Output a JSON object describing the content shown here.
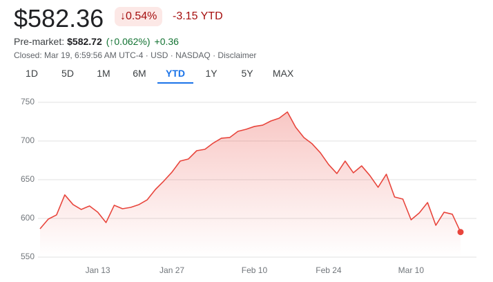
{
  "header": {
    "price": "$582.36",
    "change_pct": "↓0.54%",
    "ytd": "-3.15 YTD",
    "premarket_label": "Pre-market:",
    "premarket_price": "$582.72",
    "premarket_pct": "(↑0.062%)",
    "premarket_change": "+0.36",
    "status": "Closed: Mar 19, 6:59:56 AM UTC-4 · USD · NASDAQ · Disclaimer"
  },
  "tabs": {
    "items": [
      "1D",
      "5D",
      "1M",
      "6M",
      "YTD",
      "1Y",
      "5Y",
      "MAX"
    ],
    "active": "YTD"
  },
  "chart_data": {
    "type": "line",
    "categories": [
      null,
      null,
      null,
      null,
      null,
      null,
      null,
      "Jan 13",
      null,
      null,
      null,
      null,
      null,
      null,
      null,
      null,
      "Jan 27",
      null,
      null,
      null,
      null,
      null,
      null,
      null,
      null,
      null,
      "Feb 10",
      null,
      null,
      null,
      null,
      null,
      null,
      null,
      null,
      "Feb 24",
      null,
      null,
      null,
      null,
      null,
      null,
      null,
      null,
      null,
      "Mar 10",
      null,
      null,
      null,
      null,
      null,
      null
    ],
    "series": [
      {
        "color": "#e8453c",
        "values": [
          586.6,
          599.1,
          604.5,
          630.4,
          617.9,
          611.6,
          616.1,
          608.0,
          594.6,
          617.0,
          612.5,
          614.3,
          617.9,
          624.1,
          637.5,
          648.2,
          659.8,
          674.1,
          676.8,
          687.5,
          689.3,
          697.3,
          703.6,
          704.5,
          712.5,
          715.2,
          718.8,
          720.5,
          725.9,
          729.5,
          737.5,
          717.9,
          704.5,
          696.4,
          684.8,
          669.6,
          658.0,
          674.1,
          658.9,
          667.9,
          655.4,
          640.2,
          657.1,
          627.7,
          625.0,
          598.2,
          607.1,
          620.5,
          591.1,
          608.0,
          605.4,
          582.4
        ]
      }
    ],
    "ylim": [
      550,
      750
    ],
    "yticks": [
      550,
      600,
      650,
      700,
      750
    ],
    "grid": true
  }
}
